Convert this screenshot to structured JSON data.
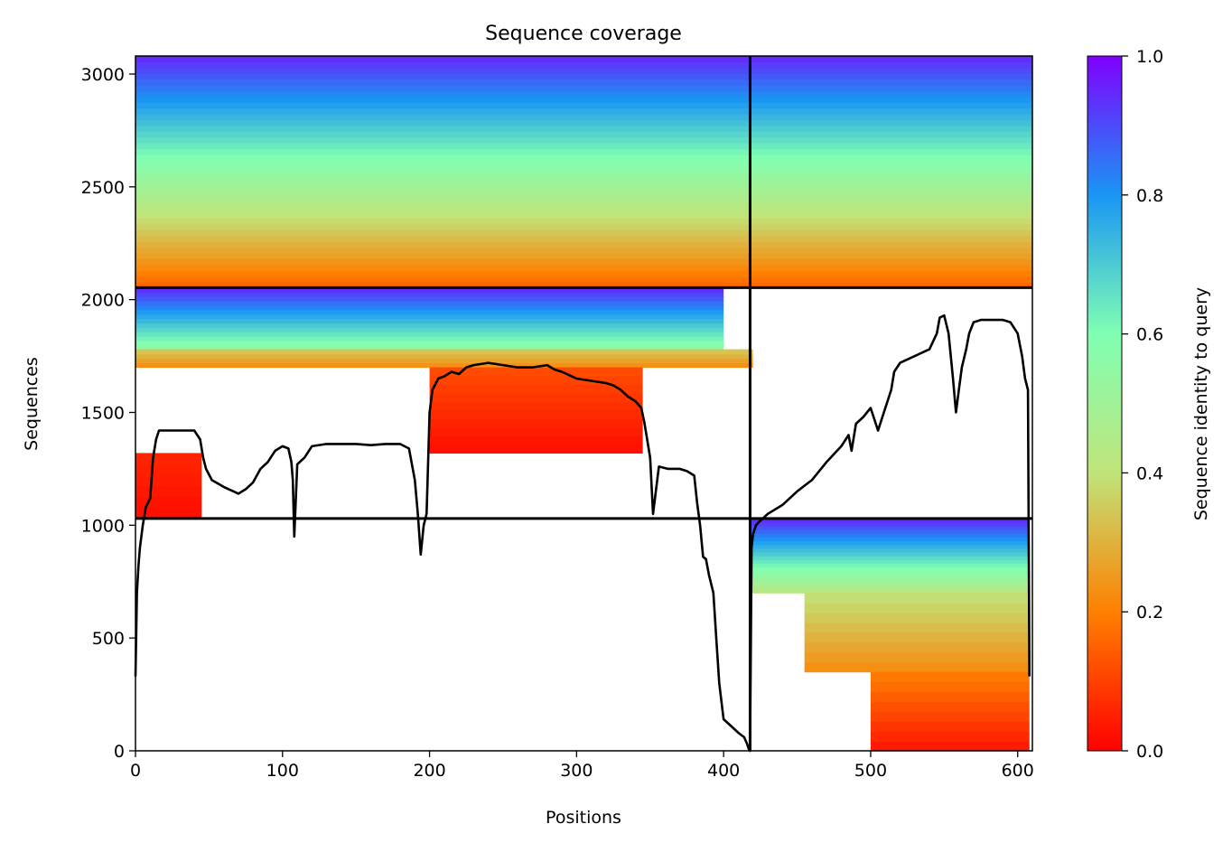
{
  "chart_data": {
    "type": "heatmap",
    "title": "Sequence coverage",
    "xlabel": "Positions",
    "ylabel": "Sequences",
    "xlim": [
      0,
      610
    ],
    "ylim": [
      0,
      3080
    ],
    "xticks": [
      0,
      100,
      200,
      300,
      400,
      500,
      600
    ],
    "yticks": [
      0,
      500,
      1000,
      1500,
      2000,
      2500,
      3000
    ],
    "colorbar": {
      "label": "Sequence identity to query",
      "range": [
        0,
        1
      ],
      "ticks": [
        "0.0",
        "0.2",
        "0.4",
        "0.6",
        "0.8",
        "1.0"
      ],
      "colormap": "rainbow",
      "stops": [
        "#ff0000",
        "#ff8000",
        "#c0e47a",
        "#80ffb3",
        "#1996f3",
        "#8000ff"
      ]
    },
    "boundaries": {
      "x": [
        418
      ],
      "y": [
        1030,
        2053
      ]
    },
    "coverage_line": {
      "x": [
        0,
        1,
        2,
        3,
        5,
        7,
        10,
        12,
        14,
        16,
        20,
        30,
        40,
        44,
        46,
        48,
        52,
        60,
        70,
        75,
        80,
        85,
        90,
        95,
        100,
        104,
        106,
        107,
        108,
        110,
        115,
        120,
        130,
        140,
        150,
        160,
        170,
        180,
        186,
        190,
        192,
        194,
        196,
        198,
        200,
        202,
        206,
        210,
        215,
        220,
        225,
        230,
        240,
        250,
        260,
        270,
        280,
        285,
        290,
        300,
        310,
        320,
        325,
        330,
        335,
        340,
        344,
        346,
        348,
        350,
        352,
        356,
        362,
        370,
        375,
        380,
        382,
        384,
        386,
        388,
        390,
        393,
        395,
        397,
        400,
        405,
        410,
        414,
        416,
        417,
        418,
        419,
        420,
        422,
        425,
        430,
        440,
        450,
        460,
        470,
        480,
        485,
        487,
        490,
        495,
        500,
        505,
        510,
        514,
        516,
        520,
        530,
        540,
        545,
        547,
        550,
        553,
        556,
        558,
        560,
        562,
        565,
        567,
        570,
        575,
        580,
        590,
        595,
        600,
        603,
        605,
        607,
        608
      ],
      "y": [
        330,
        700,
        820,
        900,
        1000,
        1080,
        1120,
        1300,
        1380,
        1420,
        1420,
        1420,
        1420,
        1380,
        1300,
        1250,
        1200,
        1170,
        1140,
        1160,
        1190,
        1250,
        1280,
        1330,
        1350,
        1340,
        1280,
        1200,
        950,
        1270,
        1300,
        1350,
        1360,
        1360,
        1360,
        1355,
        1360,
        1360,
        1340,
        1200,
        1050,
        870,
        1000,
        1050,
        1500,
        1600,
        1650,
        1660,
        1680,
        1670,
        1700,
        1710,
        1720,
        1710,
        1700,
        1700,
        1710,
        1690,
        1680,
        1650,
        1640,
        1630,
        1620,
        1600,
        1570,
        1550,
        1520,
        1460,
        1380,
        1300,
        1050,
        1260,
        1250,
        1250,
        1240,
        1220,
        1100,
        1000,
        860,
        850,
        780,
        700,
        500,
        300,
        140,
        110,
        80,
        60,
        30,
        10,
        0,
        900,
        960,
        1000,
        1020,
        1050,
        1090,
        1150,
        1200,
        1280,
        1350,
        1400,
        1330,
        1450,
        1480,
        1520,
        1420,
        1520,
        1600,
        1680,
        1720,
        1750,
        1780,
        1850,
        1920,
        1930,
        1850,
        1650,
        1500,
        1600,
        1700,
        1780,
        1850,
        1900,
        1910,
        1910,
        1910,
        1900,
        1850,
        1750,
        1650,
        1600,
        330
      ]
    }
  }
}
